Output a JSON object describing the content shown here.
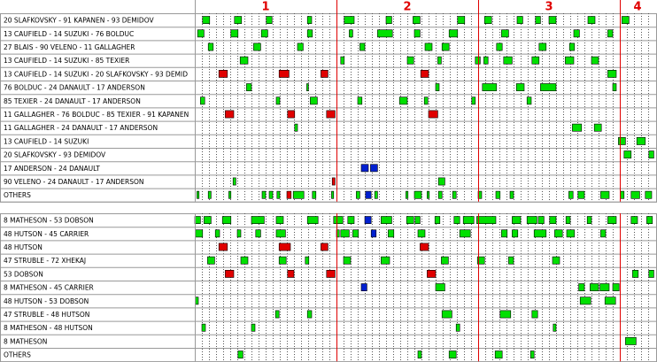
{
  "xlim": [
    0,
    65
  ],
  "colors": {
    "even": "#00e000",
    "pp": "#e00000",
    "pk": "#0020d0",
    "period_line": "#e00000"
  },
  "periods": [
    {
      "label": "1",
      "start": 0,
      "end": 20
    },
    {
      "label": "2",
      "start": 20,
      "end": 40
    },
    {
      "label": "3",
      "start": 40,
      "end": 60
    },
    {
      "label": "4",
      "start": 60,
      "end": 65
    }
  ],
  "sections": [
    {
      "rows": [
        {
          "label": "20 SLAFKOVSKY - 91 KAPANEN - 93 DEMIDOV",
          "even": [
            [
              1.1,
              2.1
            ],
            [
              5.6,
              6.6
            ],
            [
              10.1,
              10.9
            ],
            [
              15.9,
              16.5
            ],
            [
              21.1,
              22.5
            ],
            [
              27,
              27.8
            ],
            [
              30.8,
              31.8
            ],
            [
              37.1,
              38.1
            ],
            [
              40.9,
              41.9
            ],
            [
              45.5,
              46.3
            ],
            [
              48.1,
              48.8
            ],
            [
              50,
              51
            ],
            [
              55.5,
              56.5
            ],
            [
              60.3,
              61.3
            ]
          ]
        },
        {
          "label": "13 CAUFIELD - 14 SUZUKI - 76 BOLDUC",
          "even": [
            [
              0.4,
              1.3
            ],
            [
              5.1,
              6.1
            ],
            [
              9.4,
              10.3
            ],
            [
              15.9,
              16.6
            ],
            [
              21.8,
              22.3
            ],
            [
              25.8,
              27.9
            ],
            [
              31,
              31.8
            ],
            [
              35.9,
              37.1
            ],
            [
              43.3,
              44.3
            ],
            [
              53.5,
              54.3
            ],
            [
              58.3,
              59
            ]
          ]
        },
        {
          "label": "27 BLAIS - 90 VELENO - 11 GALLAGHER",
          "even": [
            [
              1.9,
              2.6
            ],
            [
              8.3,
              9.3
            ],
            [
              14.5,
              15.3
            ],
            [
              23.3,
              24
            ],
            [
              32.5,
              33.5
            ],
            [
              34.9,
              35.9
            ],
            [
              42.6,
              43.4
            ],
            [
              48.6,
              49.6
            ],
            [
              52.9,
              53.6
            ]
          ]
        },
        {
          "label": "13 CAUFIELD - 14 SUZUKI - 85 TEXIER",
          "even": [
            [
              6.4,
              7.5
            ],
            [
              20.6,
              21.1
            ],
            [
              30,
              30.9
            ],
            [
              34.3,
              34.8
            ],
            [
              39.6,
              40.3
            ],
            [
              40.8,
              41.4
            ],
            [
              43.6,
              44.8
            ],
            [
              47.6,
              48.6
            ],
            [
              52.3,
              53.5
            ],
            [
              56,
              57
            ]
          ]
        },
        {
          "label": "13 CAUFIELD - 14 SUZUKI - 20 SLAFKOVSKY - 93 DEMID",
          "pp": [
            [
              3.4,
              4.6
            ],
            [
              11.9,
              13.3
            ],
            [
              17.8,
              18.8
            ],
            [
              31.9,
              33
            ]
          ],
          "even": [
            [
              58.3,
              59.5
            ]
          ]
        },
        {
          "label": "76 BOLDUC - 24 DANAULT - 17 ANDERSON",
          "even": [
            [
              7.3,
              8
            ],
            [
              15.8,
              16
            ],
            [
              34,
              34.5
            ],
            [
              40.6,
              42.6
            ],
            [
              45.4,
              46.5
            ],
            [
              48.8,
              51
            ],
            [
              59,
              59.5
            ]
          ]
        },
        {
          "label": "85 TEXIER - 24 DANAULT - 17 ANDERSON",
          "even": [
            [
              0.8,
              1.4
            ],
            [
              11.5,
              12
            ],
            [
              16.3,
              17.3
            ],
            [
              23,
              23.6
            ],
            [
              28.9,
              30
            ],
            [
              32.4,
              32.9
            ],
            [
              39.1,
              39.6
            ],
            [
              46.9,
              47.5
            ]
          ]
        },
        {
          "label": "11 GALLAGHER - 76 BOLDUC - 85 TEXIER - 91 KAPANEN",
          "pp": [
            [
              4.3,
              5.5
            ],
            [
              13.1,
              14.1
            ],
            [
              18.6,
              19.8
            ],
            [
              33,
              34.3
            ]
          ]
        },
        {
          "label": "11 GALLAGHER - 24 DANAULT - 17 ANDERSON",
          "even": [
            [
              14.1,
              14.5
            ],
            [
              53.3,
              54.6
            ],
            [
              56.4,
              57.4
            ]
          ]
        },
        {
          "label": "13 CAUFIELD - 14 SUZUKI",
          "even": [
            [
              59.8,
              60.8
            ],
            [
              62.4,
              63.6
            ]
          ]
        },
        {
          "label": "20 SLAFKOVSKY - 93 DEMIDOV",
          "even": [
            [
              60.6,
              61.6
            ],
            [
              64.1,
              64.8
            ]
          ]
        },
        {
          "label": "17 ANDERSON - 24 DANAULT",
          "pk": [
            [
              23.5,
              24.5
            ],
            [
              24.8,
              25.8
            ]
          ]
        },
        {
          "label": "90 VELENO - 24 DANAULT - 17 ANDERSON",
          "even": [
            [
              5.4,
              5.8
            ],
            [
              34.4,
              35.3
            ]
          ],
          "pp": [
            [
              19.4,
              19.8
            ]
          ]
        },
        {
          "label": "OTHERS",
          "even": [
            [
              0.3,
              0.6
            ],
            [
              1.9,
              2.3
            ],
            [
              4.8,
              5.1
            ],
            [
              9.5,
              10
            ],
            [
              10.5,
              11
            ],
            [
              11.6,
              12
            ],
            [
              13.9,
              15.4
            ],
            [
              16.6,
              17.1
            ],
            [
              19.3,
              19.6
            ],
            [
              22.8,
              23.3
            ],
            [
              25.4,
              25.8
            ],
            [
              29.8,
              30.1
            ],
            [
              31,
              32
            ],
            [
              32.8,
              33.1
            ],
            [
              34.4,
              34.9
            ],
            [
              36.4,
              36.9
            ],
            [
              40,
              40.5
            ],
            [
              42.5,
              43.1
            ],
            [
              44.5,
              45
            ],
            [
              52.8,
              53.4
            ],
            [
              54.1,
              55
            ],
            [
              57.3,
              58.5
            ],
            [
              60.1,
              60.6
            ],
            [
              61.6,
              62.8
            ],
            [
              63.6,
              64.5
            ]
          ],
          "pp": [
            [
              13,
              13.6
            ]
          ],
          "pk": [
            [
              24.1,
              24.9
            ]
          ]
        }
      ]
    },
    {
      "rows": [
        {
          "label": "8 MATHESON - 53 DOBSON",
          "even": [
            [
              0,
              0.8
            ],
            [
              1.3,
              2.3
            ],
            [
              3.9,
              5.1
            ],
            [
              8,
              9.8
            ],
            [
              11.5,
              12.5
            ],
            [
              15.9,
              17.4
            ],
            [
              19.6,
              20.9
            ],
            [
              21.6,
              22.5
            ],
            [
              26.3,
              27.8
            ],
            [
              29.9,
              30.9
            ],
            [
              31.1,
              31.8
            ],
            [
              33.9,
              34.6
            ],
            [
              36.6,
              37.4
            ],
            [
              37.9,
              39.4
            ],
            [
              39.8,
              42.5
            ],
            [
              44.8,
              46
            ],
            [
              46.9,
              48.3
            ],
            [
              48.5,
              49.3
            ],
            [
              50.1,
              51
            ],
            [
              52.4,
              53
            ],
            [
              55.4,
              56
            ],
            [
              58.3,
              59.5
            ],
            [
              61.6,
              62.5
            ],
            [
              63.8,
              64.6
            ]
          ],
          "pk": [
            [
              24,
              24.9
            ]
          ]
        },
        {
          "label": "48 HUTSON - 45 CARRIER",
          "even": [
            [
              0.1,
              1.1
            ],
            [
              2.9,
              3.5
            ],
            [
              6,
              6.5
            ],
            [
              8.6,
              9.3
            ],
            [
              11.5,
              12.8
            ],
            [
              20,
              20.4
            ],
            [
              20.6,
              21.8
            ],
            [
              22.3,
              23.1
            ],
            [
              27.3,
              28.1
            ],
            [
              31.5,
              32.5
            ],
            [
              37.4,
              38.9
            ],
            [
              43.3,
              44.1
            ],
            [
              44.8,
              45.6
            ],
            [
              47.9,
              49.6
            ],
            [
              50.8,
              51.9
            ],
            [
              52.5,
              53.6
            ],
            [
              57.3,
              58
            ]
          ],
          "pk": [
            [
              24.9,
              25.6
            ]
          ]
        },
        {
          "label": "48 HUTSON",
          "pp": [
            [
              3.4,
              4.6
            ],
            [
              11.9,
              13.5
            ],
            [
              17.8,
              18.8
            ],
            [
              31.8,
              33
            ]
          ]
        },
        {
          "label": "47 STRUBLE - 72 XHEKAJ",
          "even": [
            [
              1.8,
              2.8
            ],
            [
              6.5,
              7.5
            ],
            [
              11.9,
              12.9
            ],
            [
              15.6,
              16.1
            ],
            [
              21,
              22
            ],
            [
              26.3,
              27.5
            ],
            [
              34.8,
              35.8
            ],
            [
              39.9,
              40.9
            ],
            [
              44.3,
              45
            ],
            [
              50.5,
              51.5
            ]
          ]
        },
        {
          "label": "53 DOBSON",
          "pp": [
            [
              4.3,
              5.5
            ],
            [
              13.1,
              14
            ],
            [
              18.6,
              19.8
            ],
            [
              32.8,
              34
            ]
          ],
          "even": [
            [
              61.8,
              62.6
            ],
            [
              64.1,
              64.8
            ]
          ]
        },
        {
          "label": "8 MATHESON - 45 CARRIER",
          "pk": [
            [
              23.5,
              24.3
            ]
          ],
          "even": [
            [
              34,
              35.3
            ],
            [
              54.2,
              55
            ],
            [
              55.8,
              57
            ],
            [
              57.2,
              58.5
            ],
            [
              59,
              59.9
            ]
          ]
        },
        {
          "label": "48 HUTSON - 53 DOBSON",
          "even": [
            [
              0.1,
              0.5
            ],
            [
              54.4,
              55.9
            ],
            [
              57.9,
              59.4
            ]
          ]
        },
        {
          "label": "47 STRUBLE - 48 HUTSON",
          "even": [
            [
              11.4,
              11.9
            ],
            [
              15.9,
              16.5
            ],
            [
              34.9,
              36.3
            ],
            [
              43.1,
              44.6
            ],
            [
              47.6,
              48.4
            ]
          ]
        },
        {
          "label": "8 MATHESON - 48 HUTSON",
          "even": [
            [
              1,
              1.5
            ],
            [
              8,
              8.5
            ],
            [
              36.9,
              37.4
            ],
            [
              50.6,
              51
            ]
          ]
        },
        {
          "label": "8 MATHESON",
          "even": [
            [
              60.8,
              62.3
            ]
          ]
        },
        {
          "label": "OTHERS",
          "even": [
            [
              6.1,
              6.8
            ],
            [
              31.5,
              32
            ],
            [
              35.9,
              36.9
            ],
            [
              42.4,
              43.4
            ],
            [
              47.4,
              47.9
            ]
          ]
        }
      ]
    }
  ]
}
